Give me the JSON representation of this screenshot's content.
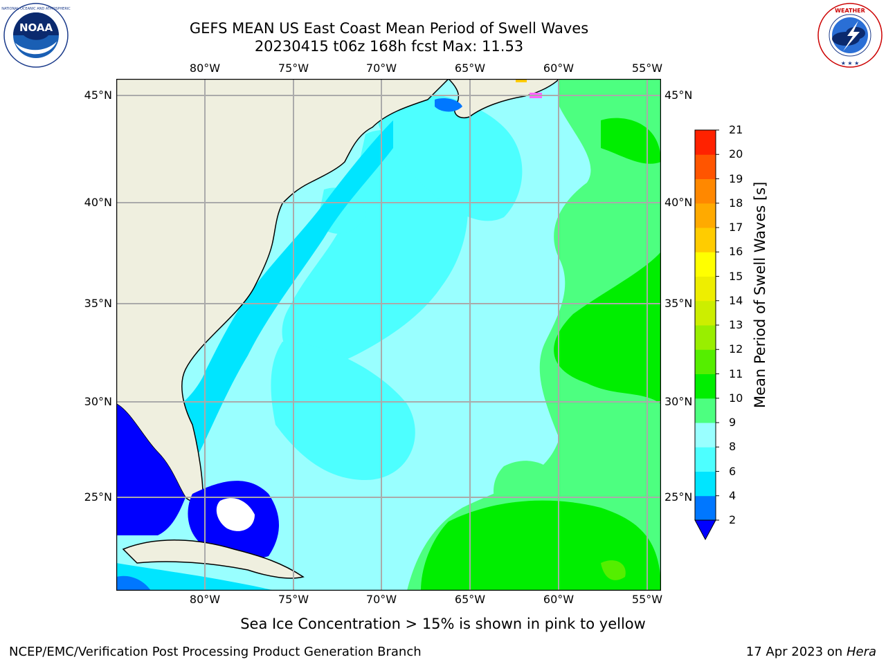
{
  "title": {
    "line1": "GEFS MEAN US East Coast Mean Period of Swell Waves",
    "line2": "20230415 t06z 168h fcst   Max: 11.53"
  },
  "logos": {
    "left": {
      "icon": "noaa-logo",
      "text": "NOAA",
      "ring_text": "NATIONAL OCEANIC AND ATMOSPHERIC ADMINISTRATION · U.S. DEPARTMENT OF COMMERCE"
    },
    "right": {
      "icon": "nws-logo",
      "ring_text": "NATIONAL WEATHER SERVICE"
    }
  },
  "map": {
    "lon_labels": [
      "80°W",
      "75°W",
      "70°W",
      "65°W",
      "60°W",
      "55°W"
    ],
    "lat_labels": [
      "45°N",
      "40°N",
      "35°N",
      "30°N",
      "25°N"
    ],
    "land_color": "#efefdf",
    "ice_color": "#ff66ff"
  },
  "colorbar": {
    "title": "Mean Period of Swell Waves [s]",
    "levels": [
      "2",
      "4",
      "6",
      "8",
      "9",
      "10",
      "11",
      "12",
      "13",
      "14",
      "15",
      "16",
      "17",
      "18",
      "19",
      "20",
      "21"
    ],
    "colors": [
      "#0077ff",
      "#00e5ff",
      "#4dffff",
      "#99ffff",
      "#4dff80",
      "#00ee00",
      "#55ee00",
      "#99ee00",
      "#ccee00",
      "#eeee00",
      "#ffff00",
      "#ffcc00",
      "#ffaa00",
      "#ff8800",
      "#ff5500",
      "#ff2200"
    ],
    "under_color": "#0000ff"
  },
  "footer": {
    "note": "Sea Ice Concentration > 15% is shown in pink to yellow",
    "credit": "NCEP/EMC/Verification Post Processing Product Generation Branch",
    "date": "17 Apr 2023 on",
    "machine": "Hera"
  }
}
